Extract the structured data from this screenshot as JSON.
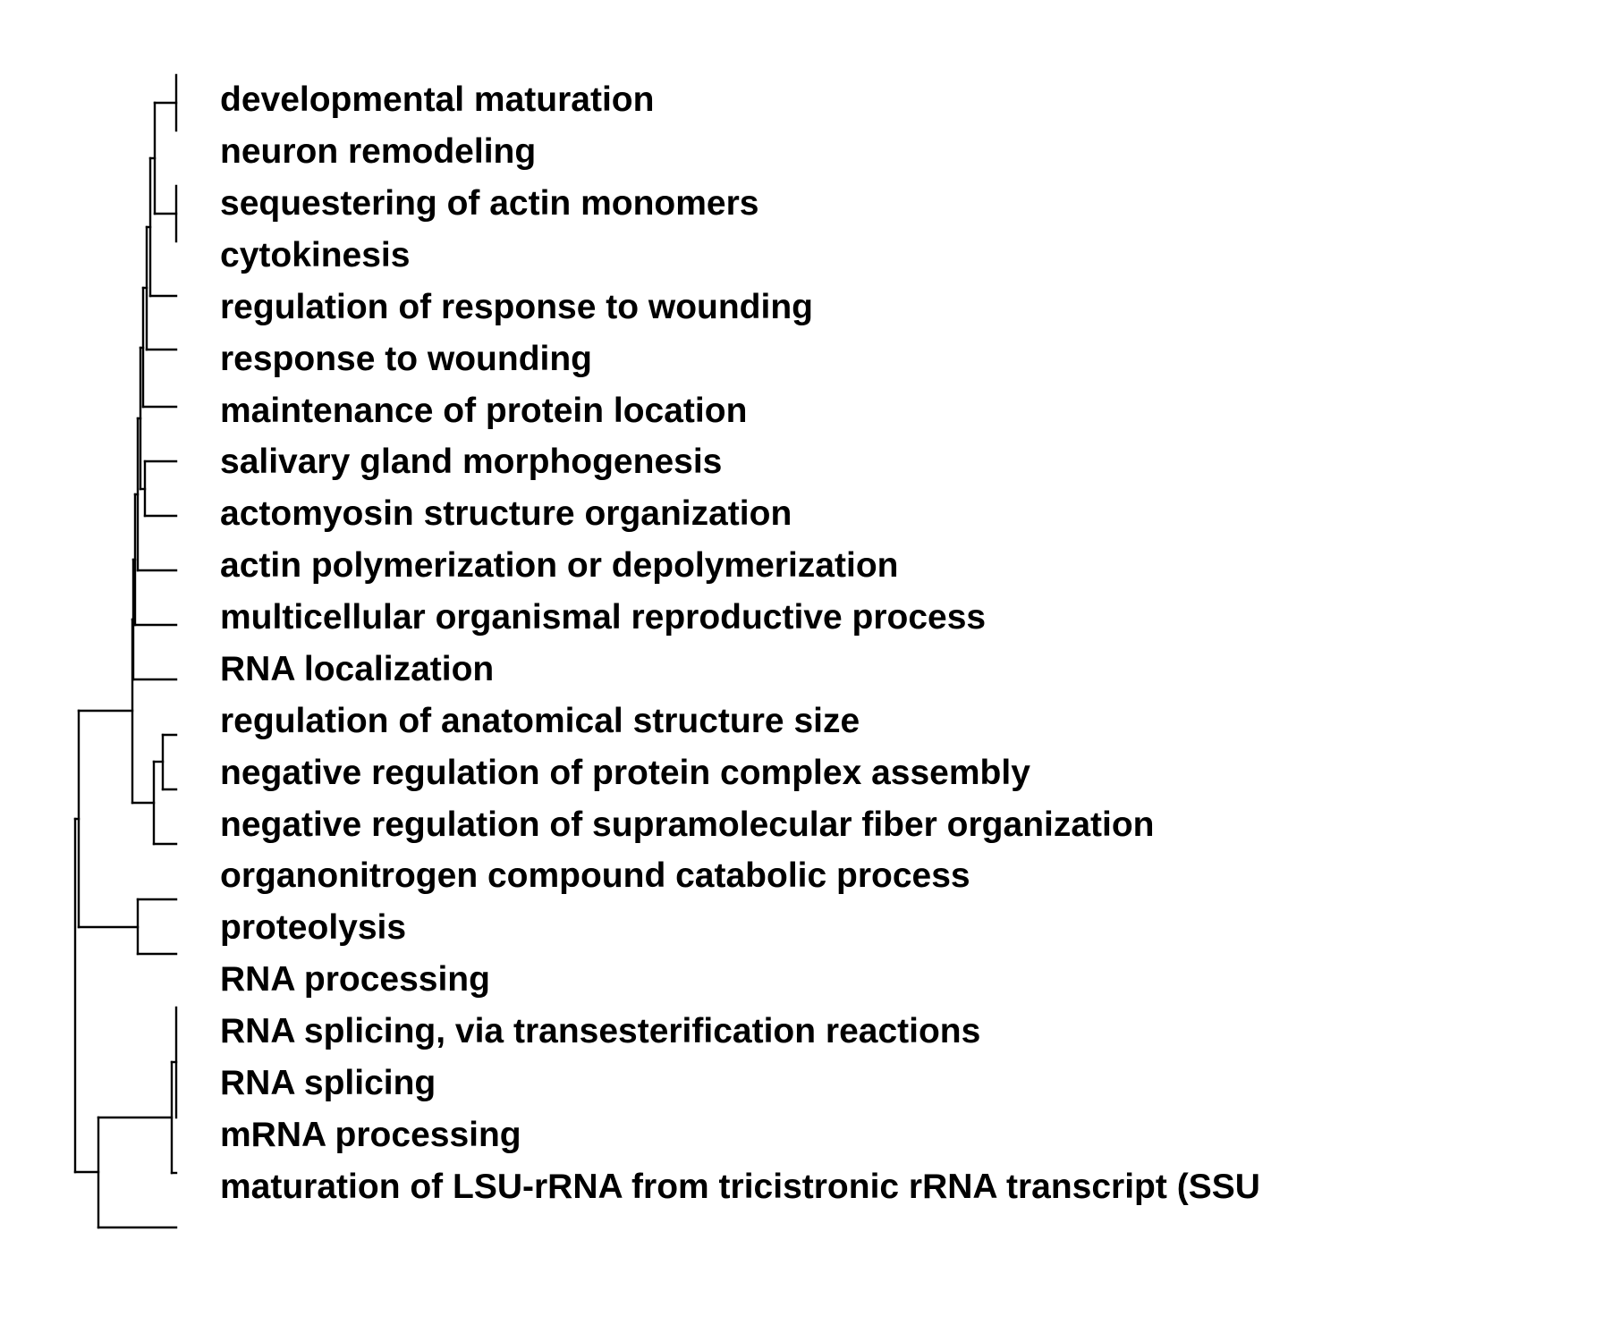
{
  "labels": [
    "developmental maturation",
    "neuron remodeling",
    "sequestering of actin monomers",
    "cytokinesis",
    "regulation of response to wounding",
    "response to wounding",
    "maintenance of protein location",
    "salivary gland morphogenesis",
    "actomyosin structure organization",
    "actin polymerization or depolymerization",
    "multicellular organismal reproductive process",
    "RNA localization",
    "regulation of anatomical structure size",
    "negative regulation of protein complex assembly",
    "negative regulation of supramolecular fiber organization",
    "organonitrogen compound catabolic process",
    "proteolysis",
    "RNA processing",
    "RNA splicing, via transesterification reactions",
    "RNA splicing",
    "mRNA processing",
    "maturation of LSU-rRNA from tricistronic rRNA transcript (SSU"
  ]
}
